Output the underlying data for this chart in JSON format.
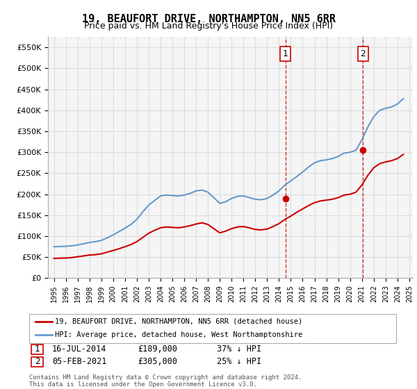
{
  "title": "19, BEAUFORT DRIVE, NORTHAMPTON, NN5 6RR",
  "subtitle": "Price paid vs. HM Land Registry's House Price Index (HPI)",
  "legend_line1": "19, BEAUFORT DRIVE, NORTHAMPTON, NN5 6RR (detached house)",
  "legend_line2": "HPI: Average price, detached house, West Northamptonshire",
  "annotation1_label": "1",
  "annotation1_date": "16-JUL-2014",
  "annotation1_price": "£189,000",
  "annotation1_hpi": "37% ↓ HPI",
  "annotation2_label": "2",
  "annotation2_date": "05-FEB-2021",
  "annotation2_price": "£305,000",
  "annotation2_hpi": "25% ↓ HPI",
  "footnote": "Contains HM Land Registry data © Crown copyright and database right 2024.\nThis data is licensed under the Open Government Licence v3.0.",
  "red_color": "#cc0000",
  "blue_color": "#6699cc",
  "annotation_line_color": "#cc0000",
  "background_color": "#ffffff",
  "grid_color": "#dddddd",
  "ylim": [
    0,
    575000
  ],
  "yticks": [
    0,
    50000,
    100000,
    150000,
    200000,
    250000,
    300000,
    350000,
    400000,
    450000,
    500000,
    550000
  ],
  "x_start_year": 1995,
  "x_end_year": 2025,
  "hpi_data": {
    "years": [
      1995,
      1995.5,
      1996,
      1996.5,
      1997,
      1997.5,
      1998,
      1998.5,
      1999,
      1999.5,
      2000,
      2000.5,
      2001,
      2001.5,
      2002,
      2002.5,
      2003,
      2003.5,
      2004,
      2004.5,
      2005,
      2005.5,
      2006,
      2006.5,
      2007,
      2007.5,
      2008,
      2008.5,
      2009,
      2009.5,
      2010,
      2010.5,
      2011,
      2011.5,
      2012,
      2012.5,
      2013,
      2013.5,
      2014,
      2014.5,
      2015,
      2015.5,
      2016,
      2016.5,
      2017,
      2017.5,
      2018,
      2018.5,
      2019,
      2019.5,
      2020,
      2020.5,
      2021,
      2021.5,
      2022,
      2022.5,
      2023,
      2023.5,
      2024,
      2024.5
    ],
    "values": [
      75000,
      75500,
      76000,
      77000,
      79000,
      82000,
      85000,
      87000,
      90000,
      96000,
      103000,
      111000,
      119000,
      128000,
      140000,
      158000,
      174000,
      185000,
      196000,
      198000,
      197000,
      196000,
      198000,
      202000,
      208000,
      210000,
      205000,
      192000,
      178000,
      182000,
      190000,
      195000,
      196000,
      192000,
      188000,
      187000,
      190000,
      198000,
      208000,
      222000,
      232000,
      242000,
      253000,
      265000,
      275000,
      280000,
      282000,
      285000,
      290000,
      298000,
      300000,
      305000,
      330000,
      360000,
      385000,
      400000,
      405000,
      408000,
      415000,
      428000
    ]
  },
  "price_data": {
    "years": [
      1995,
      1995.5,
      1996,
      1996.5,
      1997,
      1997.5,
      1998,
      1998.5,
      1999,
      1999.5,
      2000,
      2000.5,
      2001,
      2001.5,
      2002,
      2002.5,
      2003,
      2003.5,
      2004,
      2004.5,
      2005,
      2005.5,
      2006,
      2006.5,
      2007,
      2007.5,
      2008,
      2008.5,
      2009,
      2009.5,
      2010,
      2010.5,
      2011,
      2011.5,
      2012,
      2012.5,
      2013,
      2013.5,
      2014,
      2014.5,
      2015,
      2015.5,
      2016,
      2016.5,
      2017,
      2017.5,
      2018,
      2018.5,
      2019,
      2019.5,
      2020,
      2020.5,
      2021,
      2021.5,
      2022,
      2022.5,
      2023,
      2023.5,
      2024,
      2024.5
    ],
    "values": [
      47000,
      47500,
      48000,
      49000,
      51000,
      53000,
      55000,
      56000,
      58000,
      62000,
      66000,
      70000,
      75000,
      80000,
      87000,
      97000,
      107000,
      114000,
      120000,
      122000,
      121000,
      120000,
      122000,
      125000,
      129000,
      132000,
      128000,
      118000,
      108000,
      112000,
      118000,
      122000,
      123000,
      120000,
      116000,
      115000,
      117000,
      123000,
      130000,
      140000,
      148000,
      157000,
      165000,
      173000,
      180000,
      184000,
      186000,
      188000,
      192000,
      198000,
      200000,
      205000,
      222000,
      245000,
      263000,
      273000,
      277000,
      280000,
      285000,
      295000
    ]
  },
  "sale1_year": 2014.54,
  "sale1_price": 189000,
  "sale2_year": 2021.09,
  "sale2_price": 305000
}
